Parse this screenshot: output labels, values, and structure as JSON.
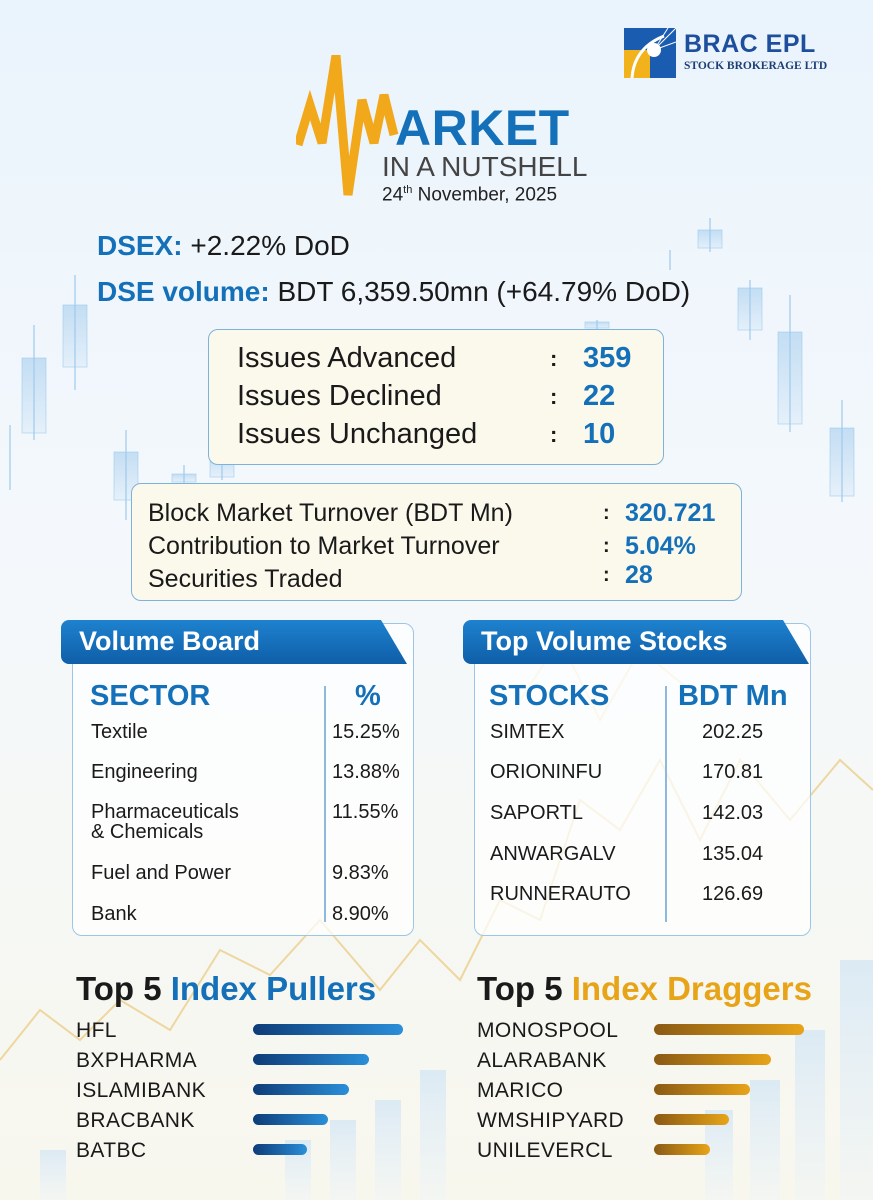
{
  "brand": {
    "name": "BRAC EPL",
    "subtitle": "STOCK BROKERAGE LTD"
  },
  "header": {
    "title_rest": "ARKET",
    "subtitle": "IN A NUTSHELL",
    "date_day": "24",
    "date_suffix": "th",
    "date_rest": "November, 2025"
  },
  "summary": {
    "dsex_label": "DSEX:",
    "dsex_value": "+2.22% DoD",
    "volume_label": "DSE volume:",
    "volume_value": "BDT 6,359.50mn (+64.79% DoD)"
  },
  "issues": [
    {
      "label": "Issues Advanced",
      "value": "359"
    },
    {
      "label": "Issues Declined",
      "value": "22"
    },
    {
      "label": "Issues Unchanged",
      "value": "10"
    }
  ],
  "block_market": [
    {
      "label": "Block Market Turnover (BDT Mn)",
      "value": "320.721"
    },
    {
      "label": "Contribution to Market Turnover",
      "value": "5.04%"
    },
    {
      "label": "Securities Traded",
      "value": "28"
    }
  ],
  "volume_board": {
    "title": "Volume Board",
    "col1": "SECTOR",
    "col2": "%",
    "rows": [
      {
        "sector": "Textile",
        "sector2": "",
        "pct": "15.25%"
      },
      {
        "sector": "Engineering",
        "sector2": "",
        "pct": "13.88%"
      },
      {
        "sector": "Pharmaceuticals",
        "sector2": "& Chemicals",
        "pct": "11.55%"
      },
      {
        "sector": "Fuel and Power",
        "sector2": "",
        "pct": "9.83%"
      },
      {
        "sector": "Bank",
        "sector2": "",
        "pct": "8.90%"
      }
    ]
  },
  "top_volume": {
    "title": "Top Volume Stocks",
    "col1": "STOCKS",
    "col2": "BDT Mn",
    "rows": [
      {
        "stock": "SIMTEX",
        "value": "202.25"
      },
      {
        "stock": "ORIONINFU",
        "value": "170.81"
      },
      {
        "stock": "SAPORTL",
        "value": "142.03"
      },
      {
        "stock": "ANWARGALV",
        "value": "135.04"
      },
      {
        "stock": "RUNNERAUTO",
        "value": "126.69"
      }
    ]
  },
  "pullers": {
    "title_prefix": "Top 5",
    "title_highlight": "Index Pullers",
    "items": [
      {
        "name": "HFL",
        "level": 1.0
      },
      {
        "name": "BXPHARMA",
        "level": 0.77
      },
      {
        "name": "ISLAMIBANK",
        "level": 0.64
      },
      {
        "name": "BRACBANK",
        "level": 0.5
      },
      {
        "name": "BATBC",
        "level": 0.36
      }
    ]
  },
  "draggers": {
    "title_prefix": "Top 5",
    "title_highlight": "Index Draggers",
    "items": [
      {
        "name": "MONOSPOOL",
        "level": 1.0
      },
      {
        "name": "ALARABANK",
        "level": 0.78
      },
      {
        "name": "MARICO",
        "level": 0.64
      },
      {
        "name": "WMSHIPYARD",
        "level": 0.5
      },
      {
        "name": "UNILEVERCL",
        "level": 0.37
      }
    ]
  },
  "colors": {
    "blue": "#1470b8",
    "gold": "#e8a418",
    "navy": "#1d4f9c"
  }
}
